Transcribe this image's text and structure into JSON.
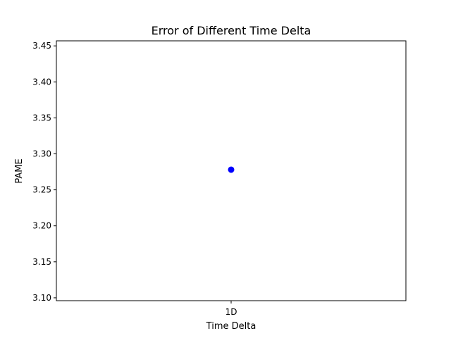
{
  "chart_data": {
    "type": "scatter",
    "title": "Error of Different Time Delta",
    "xlabel": "Time Delta",
    "ylabel": "PAME",
    "categories": [
      "1D"
    ],
    "series": [
      {
        "values": [
          3.278
        ],
        "color": "#0000ff",
        "marker": "circle"
      }
    ],
    "ylim": [
      3.096,
      3.457
    ],
    "yticks": [
      3.1,
      3.15,
      3.2,
      3.25,
      3.3,
      3.35,
      3.4,
      3.45
    ],
    "ytick_labels": [
      "3.10",
      "3.15",
      "3.20",
      "3.25",
      "3.30",
      "3.35",
      "3.40",
      "3.45"
    ],
    "grid": false,
    "legend": "none"
  }
}
